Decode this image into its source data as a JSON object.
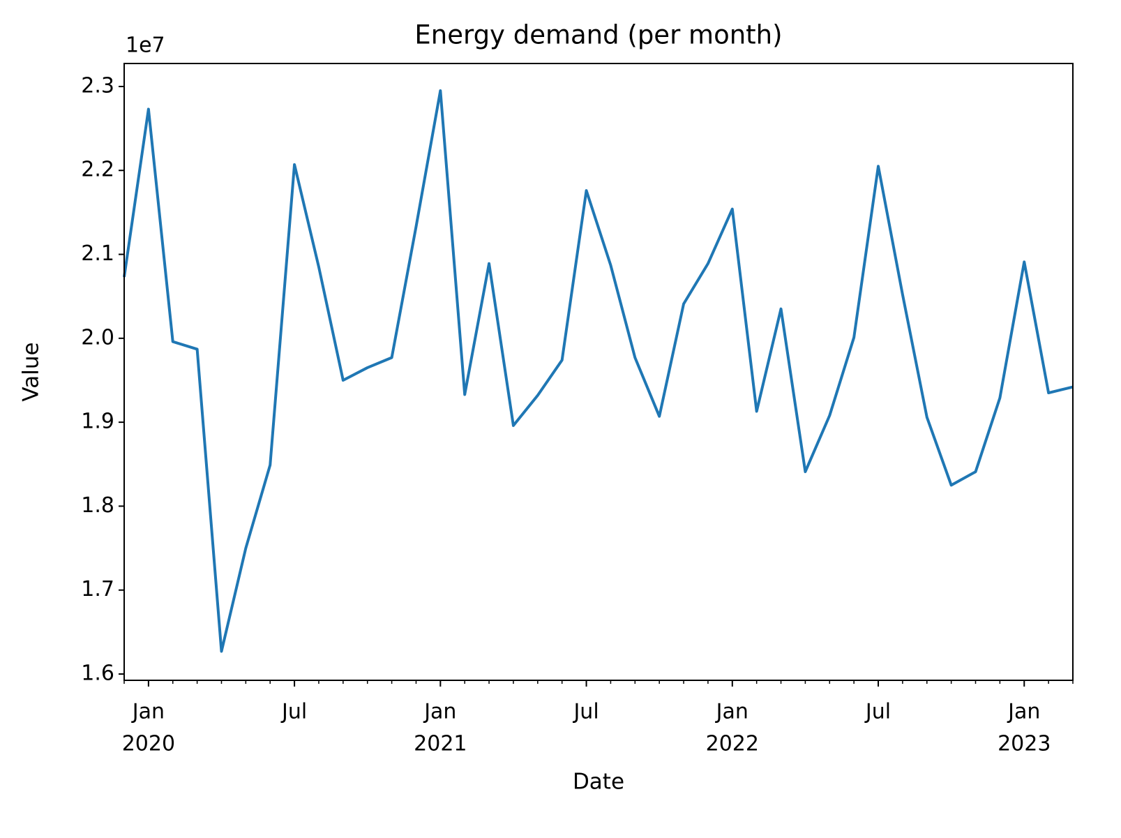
{
  "chart_data": {
    "type": "line",
    "title": "Energy demand (per month)",
    "x_label": "Date",
    "y_label": "Value",
    "y_offset_label": "1e7",
    "x": [
      "2019-12",
      "2020-01",
      "2020-02",
      "2020-03",
      "2020-04",
      "2020-05",
      "2020-06",
      "2020-07",
      "2020-08",
      "2020-09",
      "2020-10",
      "2020-11",
      "2020-12",
      "2021-01",
      "2021-02",
      "2021-03",
      "2021-04",
      "2021-05",
      "2021-06",
      "2021-07",
      "2021-08",
      "2021-09",
      "2021-10",
      "2021-11",
      "2021-12",
      "2022-01",
      "2022-02",
      "2022-03",
      "2022-04",
      "2022-05",
      "2022-06",
      "2022-07",
      "2022-08",
      "2022-09",
      "2022-10",
      "2022-11",
      "2022-12",
      "2023-01",
      "2023-02",
      "2023-03"
    ],
    "series": [
      {
        "name": "Energy demand",
        "color": "#1f77b4",
        "values": [
          2.073,
          2.273,
          1.996,
          1.987,
          1.627,
          1.75,
          1.849,
          2.207,
          2.085,
          1.95,
          1.965,
          1.977,
          2.133,
          2.295,
          1.933,
          2.089,
          1.896,
          1.932,
          1.974,
          2.176,
          2.087,
          1.977,
          1.907,
          2.041,
          2.089,
          2.154,
          1.913,
          2.035,
          1.841,
          1.908,
          2.001,
          2.205,
          2.052,
          1.906,
          1.825,
          1.841,
          1.929,
          2.091,
          1.935,
          1.942
        ]
      }
    ],
    "xlim": [
      "2019-12",
      "2023-03"
    ],
    "xticks": [
      {
        "value": "2020-01",
        "label": [
          "Jan",
          "2020"
        ]
      },
      {
        "value": "2020-07",
        "label": [
          "Jul"
        ]
      },
      {
        "value": "2021-01",
        "label": [
          "Jan",
          "2021"
        ]
      },
      {
        "value": "2021-07",
        "label": [
          "Jul"
        ]
      },
      {
        "value": "2022-01",
        "label": [
          "Jan",
          "2022"
        ]
      },
      {
        "value": "2022-07",
        "label": [
          "Jul"
        ]
      },
      {
        "value": "2023-01",
        "label": [
          "Jan",
          "2023"
        ]
      }
    ],
    "ylim": [
      1.5925,
      2.3274
    ],
    "yticks": [
      {
        "value": 1.6,
        "label": "1.6"
      },
      1.7,
      1.8,
      1.9,
      {
        "value": 2.0,
        "label": "2.0"
      },
      2.1,
      2.2,
      2.3
    ],
    "grid": false
  }
}
